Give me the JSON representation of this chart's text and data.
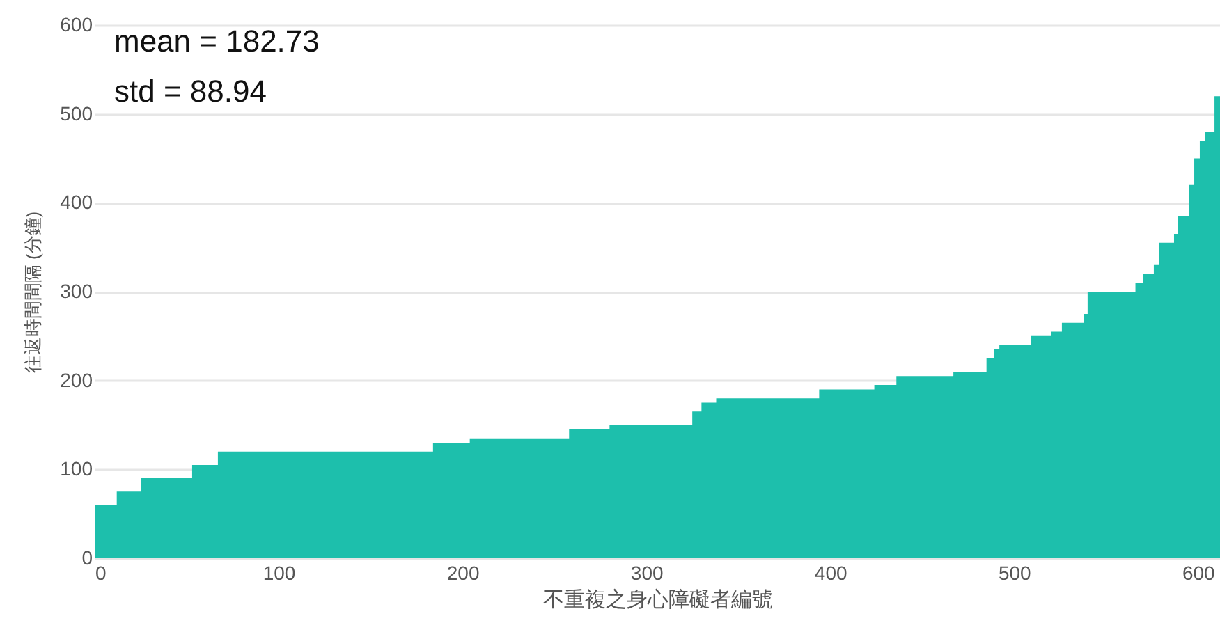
{
  "chart_data": {
    "type": "area",
    "xlabel": "不重複之身心障礙者編號",
    "ylabel": "往返時間間隔 (分鐘)",
    "annotations": [
      "mean = 182.73",
      "std = 88.94"
    ],
    "x": [
      0,
      12,
      25,
      53,
      67,
      184,
      204,
      258,
      280,
      325,
      330,
      338,
      394,
      424,
      436,
      467,
      485,
      489,
      492,
      509,
      520,
      526,
      538,
      540,
      566,
      570,
      576,
      579,
      587,
      589,
      595,
      598,
      601,
      604,
      609,
      612
    ],
    "series": [
      {
        "color": "#1dbfac",
        "values": [
          60,
          75,
          90,
          105,
          120,
          130,
          135,
          145,
          150,
          165,
          175,
          180,
          190,
          195,
          205,
          210,
          225,
          235,
          240,
          250,
          255,
          265,
          275,
          300,
          310,
          320,
          330,
          355,
          365,
          385,
          420,
          450,
          470,
          480,
          520,
          520
        ]
      }
    ],
    "xlim": [
      0,
      612
    ],
    "xticks": [
      0,
      100,
      200,
      300,
      400,
      500,
      600
    ],
    "ylim": [
      0,
      600
    ],
    "yticks": [
      0,
      100,
      200,
      300,
      400,
      500,
      600
    ],
    "grid": "y"
  }
}
